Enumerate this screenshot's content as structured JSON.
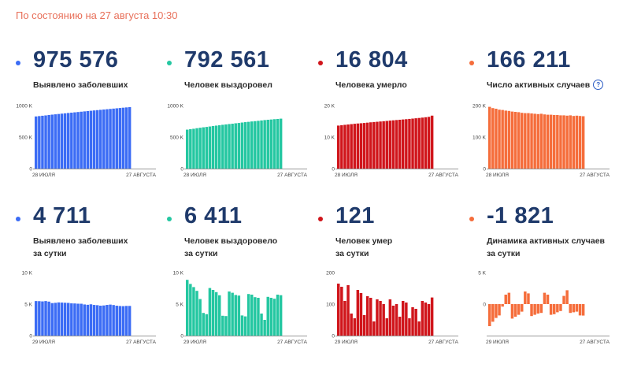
{
  "status_text": "По состоянию на 27 августа 10:30",
  "cards": [
    {
      "id": "detected-total",
      "color": "#3b6cf5",
      "value": "975 576",
      "label_lines": [
        "Выявлено заболевших"
      ],
      "chart_data": {
        "type": "bar",
        "x_start": "28 ИЮЛЯ",
        "x_end": "27 АВГУСТА",
        "yticks": [
          "0",
          "500 K",
          "1000 K"
        ],
        "ylim": [
          0,
          1000000
        ],
        "values": [
          827509,
          832993,
          838461,
          843890,
          850870,
          856264,
          861423,
          866627,
          871894,
          877135,
          882347,
          887536,
          892654,
          897599,
          902701,
          907758,
          912823,
          917884,
          922853,
          927745,
          932493,
          937321,
          942106,
          946976,
          951897,
          956749,
          961493,
          966189,
          970865,
          975576
        ]
      }
    },
    {
      "id": "recovered-total",
      "color": "#24c7a1",
      "value": "792 561",
      "label_lines": [
        "Человек выздоровел"
      ],
      "chart_data": {
        "type": "bar",
        "x_start": "28 ИЮЛЯ",
        "x_end": "27 АВГУСТА",
        "yticks": [
          "0",
          "500 K",
          "1000 K"
        ],
        "ylim": [
          0,
          1000000
        ],
        "values": [
          618000,
          626000,
          632000,
          641000,
          648000,
          655000,
          661000,
          668000,
          676000,
          682000,
          688000,
          695000,
          701000,
          707000,
          712000,
          719000,
          724000,
          731000,
          737000,
          742000,
          748000,
          753000,
          758000,
          764000,
          770000,
          775000,
          779000,
          784000,
          788000,
          792561
        ]
      }
    },
    {
      "id": "deaths-total",
      "color": "#d0151b",
      "value": "16 804",
      "label_lines": [
        "Человека умерло"
      ],
      "chart_data": {
        "type": "bar",
        "x_start": "28 ИЮЛЯ",
        "x_end": "27 АВГУСТА",
        "yticks": [
          "0",
          "10 K",
          "20 K"
        ],
        "ylim": [
          0,
          20000
        ],
        "values": [
          13650,
          13780,
          13890,
          14000,
          14110,
          14220,
          14310,
          14390,
          14480,
          14580,
          14690,
          14780,
          14860,
          14950,
          15040,
          15130,
          15230,
          15320,
          15410,
          15500,
          15590,
          15680,
          15770,
          15870,
          15970,
          16070,
          16180,
          16300,
          16420,
          16804
        ]
      }
    },
    {
      "id": "active-total",
      "color": "#f56d3b",
      "value": "166 211",
      "label_lines": [
        "Число активных случаев"
      ],
      "has_info": true,
      "info_symbol": "?",
      "chart_data": {
        "type": "bar",
        "x_start": "28 ИЮЛЯ",
        "x_end": "27 АВГУСТА",
        "yticks": [
          "0",
          "100 K",
          "200 K"
        ],
        "ylim": [
          0,
          200000
        ],
        "values": [
          196000,
          192000,
          190000,
          187000,
          186000,
          184000,
          183000,
          181000,
          180000,
          179000,
          177000,
          176000,
          176000,
          175000,
          174000,
          173000,
          174000,
          172000,
          171000,
          171000,
          170000,
          170000,
          169000,
          169000,
          168000,
          169000,
          167000,
          168000,
          167000,
          166211
        ]
      }
    },
    {
      "id": "detected-daily",
      "color": "#3b6cf5",
      "value": "4 711",
      "label_lines": [
        "Выявлено заболевших",
        "за сутки"
      ],
      "chart_data": {
        "type": "bar",
        "x_start": "29 ИЮЛЯ",
        "x_end": "27 АВГУСТА",
        "yticks": [
          "0",
          "5 K",
          "10 K"
        ],
        "ylim": [
          0,
          10000
        ],
        "values": [
          5484,
          5468,
          5429,
          5482,
          5394,
          5159,
          5204,
          5267,
          5241,
          5212,
          5189,
          5118,
          5102,
          5065,
          5057,
          4945,
          4892,
          4969,
          4870,
          4828,
          4748,
          4785,
          4870,
          4921,
          4852,
          4744,
          4696,
          4676,
          4711,
          4711
        ]
      }
    },
    {
      "id": "recovered-daily",
      "color": "#24c7a1",
      "value": "6 411",
      "label_lines": [
        "Человек выздоровело",
        "за сутки"
      ],
      "chart_data": {
        "type": "bar",
        "x_start": "29 ИЮЛЯ",
        "x_end": "27 АВГУСТА",
        "yticks": [
          "0",
          "5 K",
          "10 K"
        ],
        "ylim": [
          0,
          10000
        ],
        "values": [
          8850,
          8200,
          7700,
          7100,
          5800,
          3600,
          3400,
          7550,
          7250,
          6900,
          6400,
          3150,
          3100,
          7000,
          6800,
          6450,
          6350,
          3200,
          3050,
          6600,
          6500,
          6100,
          6000,
          3500,
          2500,
          6150,
          6000,
          5850,
          6500,
          6411
        ]
      }
    },
    {
      "id": "deaths-daily",
      "color": "#d0151b",
      "value": "121",
      "label_lines": [
        "Человек умер",
        "за сутки"
      ],
      "chart_data": {
        "type": "bar",
        "x_start": "29 ИЮЛЯ",
        "x_end": "27 АВГУСТА",
        "yticks": [
          "0",
          "100",
          "200"
        ],
        "ylim": [
          0,
          200
        ],
        "values": [
          165,
          155,
          110,
          160,
          70,
          55,
          145,
          135,
          65,
          125,
          120,
          45,
          115,
          110,
          100,
          55,
          115,
          95,
          100,
          60,
          110,
          105,
          55,
          90,
          85,
          45,
          110,
          105,
          100,
          121
        ]
      }
    },
    {
      "id": "active-daily",
      "color": "#f56d3b",
      "value": "-1 821",
      "label_lines": [
        "Динамика активных случаев",
        "за сутки"
      ],
      "chart_data": {
        "type": "bar",
        "x_start": "29 ИЮЛЯ",
        "x_end": "27 АВГУСТА",
        "yticks": [
          "5 K",
          "0"
        ],
        "ylim": [
          -5000,
          5000
        ],
        "values": [
          -3500,
          -2800,
          -2200,
          -1800,
          -400,
          1500,
          1800,
          -2300,
          -2000,
          -1700,
          -1200,
          2000,
          1700,
          -1900,
          -1700,
          -1500,
          -1400,
          1800,
          1500,
          -1700,
          -1600,
          -1300,
          -1100,
          1300,
          2200,
          -1400,
          -1300,
          -1200,
          -1800,
          -1821
        ]
      }
    }
  ]
}
